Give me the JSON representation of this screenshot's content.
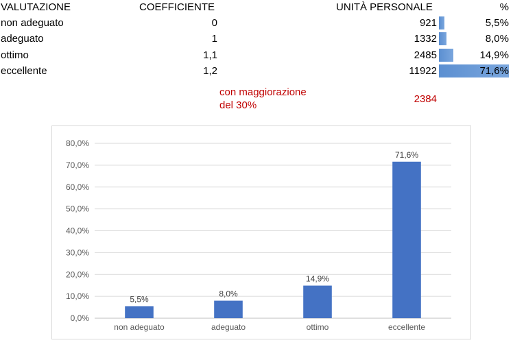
{
  "table": {
    "headers": {
      "valutazione": "VALUTAZIONE",
      "coefficiente": "COEFFICIENTE",
      "unita": "UNITÀ PERSONALE",
      "percent": "%"
    },
    "rows": [
      {
        "valutazione": "non adeguato",
        "coefficiente": "0",
        "unita": "921",
        "percent": "5,5%",
        "fraction": 0.055
      },
      {
        "valutazione": "adeguato",
        "coefficiente": "1",
        "unita": "1332",
        "percent": "8,0%",
        "fraction": 0.08
      },
      {
        "valutazione": "ottimo",
        "coefficiente": "1,1",
        "unita": "2485",
        "percent": "14,9%",
        "fraction": 0.149
      },
      {
        "valutazione": "eccellente",
        "coefficiente": "1,2",
        "unita": "11922",
        "percent": "71,6%",
        "fraction": 0.716
      }
    ],
    "note_line1": "con maggiorazione",
    "note_line2": "del 30%",
    "note_value": "2384",
    "note_color": "#c00000",
    "databar_color": "#5b8fd1"
  },
  "chart_data": {
    "type": "bar",
    "title": "",
    "xlabel": "",
    "ylabel": "",
    "categories": [
      "non adeguato",
      "adeguato",
      "ottimo",
      "eccellente"
    ],
    "values": [
      5.5,
      8.0,
      14.9,
      71.6
    ],
    "data_labels": [
      "5,5%",
      "8,0%",
      "14,9%",
      "71,6%"
    ],
    "ylim": [
      0,
      80
    ],
    "yticks": [
      0,
      10,
      20,
      30,
      40,
      50,
      60,
      70,
      80
    ],
    "ytick_labels": [
      "0,0%",
      "10,0%",
      "20,0%",
      "30,0%",
      "40,0%",
      "50,0%",
      "60,0%",
      "70,0%",
      "80,0%"
    ],
    "grid": true,
    "legend": "none",
    "bar_color": "#4472c4"
  }
}
